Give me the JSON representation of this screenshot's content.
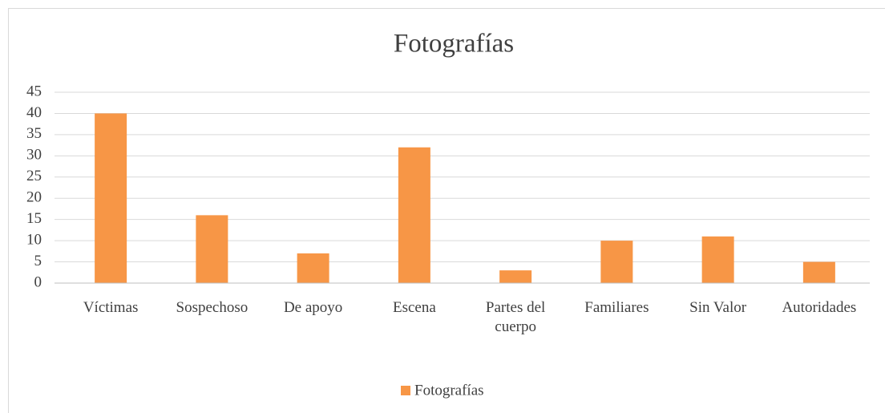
{
  "chart_data": {
    "type": "bar",
    "title": "Fotografías",
    "categories": [
      "Víctimas",
      "Sospechoso",
      "De apoyo",
      "Escena",
      "Partes del cuerpo",
      "Familiares",
      "Sin Valor",
      "Autoridades"
    ],
    "series": [
      {
        "name": "Fotografías",
        "color": "#f79646",
        "values": [
          40,
          16,
          7,
          32,
          3,
          10,
          11,
          5
        ]
      }
    ],
    "ylim": [
      0,
      45
    ],
    "yticks": [
      0,
      5,
      10,
      15,
      20,
      25,
      30,
      35,
      40,
      45
    ],
    "grid": true,
    "legend": "bottom"
  }
}
